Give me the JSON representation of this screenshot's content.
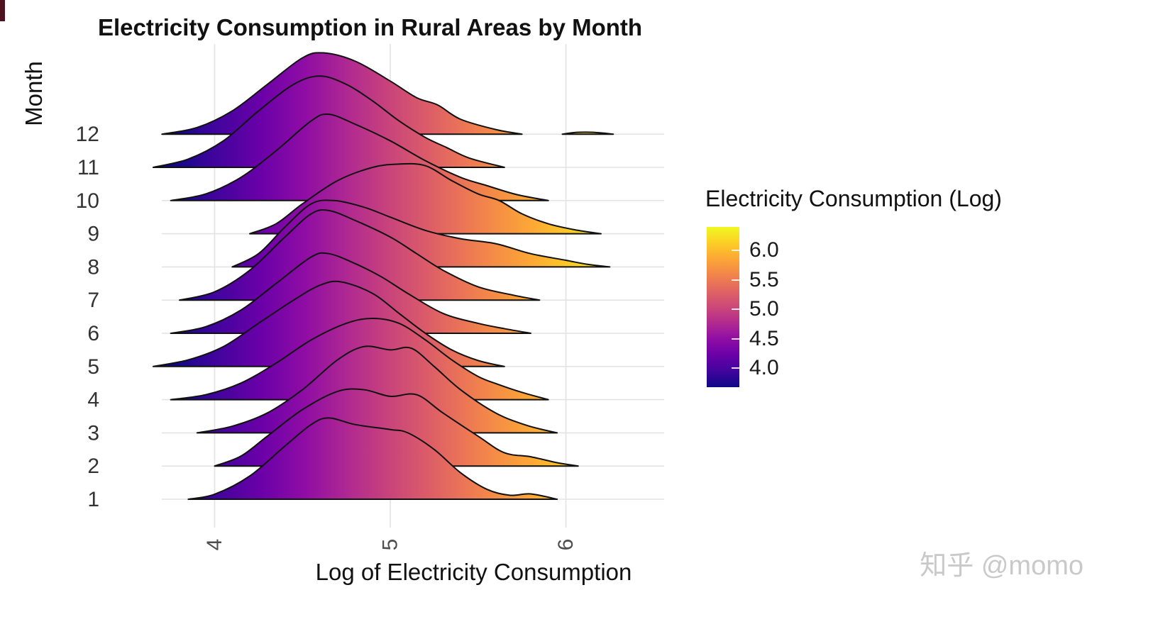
{
  "watermark": "知乎 @momo",
  "chart_data": {
    "type": "area",
    "variant": "ridgeline",
    "title": "Electricity Consumption in Rural Areas by Month",
    "xlabel": "Log of Electricity Consumption",
    "ylabel": "Month",
    "xlim": [
      3.6,
      6.45
    ],
    "x_ticks": [
      4,
      5,
      6
    ],
    "y_categories": [
      "1",
      "2",
      "3",
      "4",
      "5",
      "6",
      "7",
      "8",
      "9",
      "10",
      "11",
      "12"
    ],
    "grid": true,
    "height_unit": "row_spacing",
    "legend": {
      "title": "Electricity Consumption (Log)",
      "position": "right",
      "tick_labels": [
        "6.0",
        "5.5",
        "5.0",
        "4.5",
        "4.0"
      ],
      "tick_values": [
        6.0,
        5.5,
        5.0,
        4.5,
        4.0
      ],
      "bar_range": [
        3.68,
        6.4
      ]
    },
    "colormap": {
      "name": "plasma",
      "domain": [
        3.75,
        6.3
      ],
      "stops": [
        {
          "t": 0.0,
          "color": "#0d0887"
        },
        {
          "t": 0.1,
          "color": "#41049d"
        },
        {
          "t": 0.2,
          "color": "#6a00a8"
        },
        {
          "t": 0.3,
          "color": "#8f0da4"
        },
        {
          "t": 0.4,
          "color": "#b12a90"
        },
        {
          "t": 0.5,
          "color": "#cc4778"
        },
        {
          "t": 0.6,
          "color": "#e16462"
        },
        {
          "t": 0.7,
          "color": "#f2844b"
        },
        {
          "t": 0.8,
          "color": "#fca636"
        },
        {
          "t": 0.9,
          "color": "#fcce25"
        },
        {
          "t": 1.0,
          "color": "#f0f921"
        }
      ]
    },
    "series": [
      {
        "month": "1",
        "segments": [
          [
            [
              3.85,
              0
            ],
            [
              4.0,
              0.15
            ],
            [
              4.2,
              0.7
            ],
            [
              4.4,
              1.6
            ],
            [
              4.55,
              2.25
            ],
            [
              4.65,
              2.45
            ],
            [
              4.8,
              2.25
            ],
            [
              5.0,
              2.1
            ],
            [
              5.1,
              2.0
            ],
            [
              5.25,
              1.5
            ],
            [
              5.4,
              0.8
            ],
            [
              5.55,
              0.3
            ],
            [
              5.68,
              0.12
            ],
            [
              5.8,
              0.16
            ],
            [
              5.95,
              0
            ]
          ]
        ]
      },
      {
        "month": "2",
        "segments": [
          [
            [
              4.0,
              0
            ],
            [
              4.15,
              0.3
            ],
            [
              4.3,
              0.9
            ],
            [
              4.5,
              1.7
            ],
            [
              4.7,
              2.25
            ],
            [
              4.85,
              2.3
            ],
            [
              5.0,
              2.1
            ],
            [
              5.15,
              2.15
            ],
            [
              5.3,
              1.6
            ],
            [
              5.5,
              0.9
            ],
            [
              5.65,
              0.4
            ],
            [
              5.8,
              0.28
            ],
            [
              5.95,
              0.1
            ],
            [
              6.07,
              0
            ]
          ]
        ]
      },
      {
        "month": "3",
        "segments": [
          [
            [
              3.9,
              0
            ],
            [
              4.1,
              0.2
            ],
            [
              4.3,
              0.6
            ],
            [
              4.5,
              1.3
            ],
            [
              4.7,
              2.2
            ],
            [
              4.85,
              2.6
            ],
            [
              5.0,
              2.5
            ],
            [
              5.12,
              2.55
            ],
            [
              5.25,
              2.0
            ],
            [
              5.4,
              1.3
            ],
            [
              5.6,
              0.6
            ],
            [
              5.78,
              0.22
            ],
            [
              5.95,
              0
            ]
          ]
        ]
      },
      {
        "month": "4",
        "segments": [
          [
            [
              3.75,
              0
            ],
            [
              3.95,
              0.15
            ],
            [
              4.15,
              0.5
            ],
            [
              4.35,
              1.1
            ],
            [
              4.55,
              1.8
            ],
            [
              4.75,
              2.3
            ],
            [
              4.9,
              2.45
            ],
            [
              5.05,
              2.3
            ],
            [
              5.2,
              1.8
            ],
            [
              5.35,
              1.2
            ],
            [
              5.5,
              0.7
            ],
            [
              5.62,
              0.45
            ],
            [
              5.75,
              0.22
            ],
            [
              5.9,
              0
            ]
          ]
        ]
      },
      {
        "month": "5",
        "segments": [
          [
            [
              3.65,
              0
            ],
            [
              3.85,
              0.2
            ],
            [
              4.05,
              0.6
            ],
            [
              4.25,
              1.3
            ],
            [
              4.45,
              2.0
            ],
            [
              4.6,
              2.45
            ],
            [
              4.72,
              2.55
            ],
            [
              4.9,
              2.2
            ],
            [
              5.05,
              1.6
            ],
            [
              5.2,
              1.0
            ],
            [
              5.35,
              0.5
            ],
            [
              5.5,
              0.18
            ],
            [
              5.65,
              0
            ]
          ]
        ]
      },
      {
        "month": "6",
        "segments": [
          [
            [
              3.75,
              0
            ],
            [
              3.95,
              0.2
            ],
            [
              4.15,
              0.7
            ],
            [
              4.35,
              1.5
            ],
            [
              4.55,
              2.3
            ],
            [
              4.65,
              2.4
            ],
            [
              4.8,
              2.1
            ],
            [
              4.95,
              1.7
            ],
            [
              5.1,
              1.2
            ],
            [
              5.3,
              0.6
            ],
            [
              5.5,
              0.3
            ],
            [
              5.65,
              0.14
            ],
            [
              5.8,
              0
            ]
          ]
        ]
      },
      {
        "month": "7",
        "segments": [
          [
            [
              3.8,
              0
            ],
            [
              4.0,
              0.25
            ],
            [
              4.2,
              0.9
            ],
            [
              4.4,
              1.9
            ],
            [
              4.55,
              2.6
            ],
            [
              4.65,
              2.7
            ],
            [
              4.8,
              2.4
            ],
            [
              5.0,
              1.9
            ],
            [
              5.15,
              1.4
            ],
            [
              5.3,
              0.9
            ],
            [
              5.5,
              0.4
            ],
            [
              5.7,
              0.15
            ],
            [
              5.85,
              0
            ]
          ]
        ]
      },
      {
        "month": "8",
        "segments": [
          [
            [
              4.1,
              0
            ],
            [
              4.25,
              0.4
            ],
            [
              4.4,
              1.2
            ],
            [
              4.55,
              1.9
            ],
            [
              4.68,
              2.0
            ],
            [
              4.85,
              1.8
            ],
            [
              5.0,
              1.5
            ],
            [
              5.2,
              1.1
            ],
            [
              5.4,
              0.85
            ],
            [
              5.6,
              0.7
            ],
            [
              5.8,
              0.4
            ],
            [
              6.0,
              0.2
            ],
            [
              6.12,
              0.08
            ],
            [
              6.25,
              0
            ]
          ]
        ]
      },
      {
        "month": "9",
        "segments": [
          [
            [
              4.2,
              0
            ],
            [
              4.35,
              0.3
            ],
            [
              4.5,
              0.9
            ],
            [
              4.7,
              1.6
            ],
            [
              4.9,
              2.0
            ],
            [
              5.05,
              2.1
            ],
            [
              5.2,
              2.05
            ],
            [
              5.35,
              1.6
            ],
            [
              5.5,
              1.2
            ],
            [
              5.62,
              1.0
            ],
            [
              5.75,
              0.6
            ],
            [
              5.9,
              0.3
            ],
            [
              6.05,
              0.12
            ],
            [
              6.2,
              0
            ]
          ]
        ]
      },
      {
        "month": "10",
        "segments": [
          [
            [
              3.75,
              0
            ],
            [
              3.95,
              0.2
            ],
            [
              4.15,
              0.7
            ],
            [
              4.35,
              1.5
            ],
            [
              4.55,
              2.4
            ],
            [
              4.65,
              2.6
            ],
            [
              4.8,
              2.3
            ],
            [
              5.0,
              1.8
            ],
            [
              5.2,
              1.2
            ],
            [
              5.4,
              0.7
            ],
            [
              5.55,
              0.45
            ],
            [
              5.72,
              0.18
            ],
            [
              5.9,
              0
            ]
          ]
        ]
      },
      {
        "month": "11",
        "segments": [
          [
            [
              3.65,
              0
            ],
            [
              3.85,
              0.25
            ],
            [
              4.05,
              0.8
            ],
            [
              4.25,
              1.7
            ],
            [
              4.45,
              2.5
            ],
            [
              4.6,
              2.75
            ],
            [
              4.75,
              2.5
            ],
            [
              4.9,
              2.0
            ],
            [
              5.05,
              1.4
            ],
            [
              5.2,
              0.9
            ],
            [
              5.32,
              0.6
            ],
            [
              5.45,
              0.28
            ],
            [
              5.65,
              0
            ]
          ]
        ]
      },
      {
        "month": "12",
        "segments": [
          [
            [
              3.7,
              0
            ],
            [
              3.9,
              0.2
            ],
            [
              4.1,
              0.7
            ],
            [
              4.3,
              1.5
            ],
            [
              4.5,
              2.3
            ],
            [
              4.62,
              2.45
            ],
            [
              4.8,
              2.2
            ],
            [
              5.0,
              1.6
            ],
            [
              5.15,
              1.1
            ],
            [
              5.27,
              0.88
            ],
            [
              5.4,
              0.45
            ],
            [
              5.6,
              0.14
            ],
            [
              5.75,
              0
            ]
          ],
          [
            [
              5.98,
              0
            ],
            [
              6.05,
              0.05
            ],
            [
              6.12,
              0.06
            ],
            [
              6.2,
              0.04
            ],
            [
              6.27,
              0
            ]
          ]
        ]
      }
    ]
  }
}
